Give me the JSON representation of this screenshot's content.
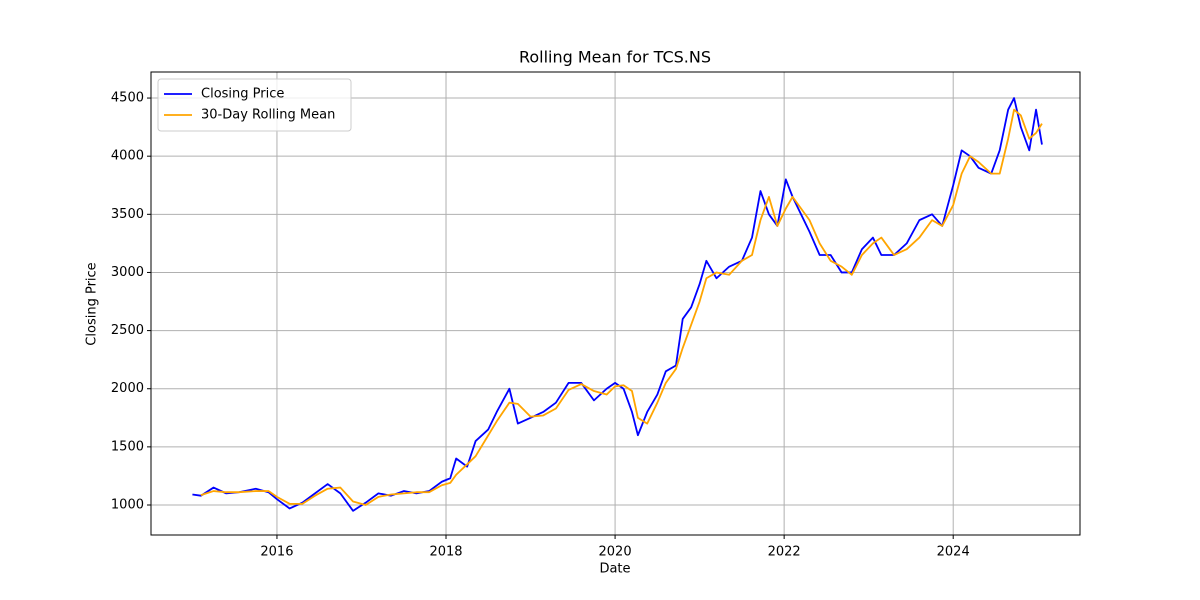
{
  "chart_data": {
    "type": "line",
    "title": "Rolling Mean for TCS.NS",
    "x_label": "Date",
    "y_label": "Closing Price",
    "x": [
      2015.0,
      2015.1,
      2015.25,
      2015.4,
      2015.55,
      2015.75,
      2015.9,
      2016.0,
      2016.15,
      2016.3,
      2016.45,
      2016.6,
      2016.75,
      2016.9,
      2017.05,
      2017.2,
      2017.35,
      2017.5,
      2017.65,
      2017.8,
      2017.95,
      2018.05,
      2018.12,
      2018.25,
      2018.35,
      2018.5,
      2018.6,
      2018.75,
      2018.85,
      2019.0,
      2019.15,
      2019.3,
      2019.45,
      2019.6,
      2019.75,
      2019.9,
      2020.0,
      2020.1,
      2020.2,
      2020.27,
      2020.38,
      2020.5,
      2020.6,
      2020.72,
      2020.8,
      2020.9,
      2021.0,
      2021.08,
      2021.2,
      2021.35,
      2021.5,
      2021.62,
      2021.72,
      2021.82,
      2021.92,
      2022.02,
      2022.1,
      2022.2,
      2022.3,
      2022.42,
      2022.55,
      2022.68,
      2022.8,
      2022.92,
      2023.05,
      2023.15,
      2023.3,
      2023.45,
      2023.6,
      2023.75,
      2023.87,
      2024.0,
      2024.1,
      2024.2,
      2024.3,
      2024.45,
      2024.55,
      2024.65,
      2024.72,
      2024.8,
      2024.9,
      2024.98,
      2025.05
    ],
    "series": [
      {
        "name": "Closing Price",
        "color": "#0000ff",
        "values": [
          1090,
          1080,
          1150,
          1100,
          1110,
          1140,
          1110,
          1050,
          970,
          1020,
          1100,
          1180,
          1100,
          950,
          1020,
          1100,
          1080,
          1120,
          1100,
          1120,
          1200,
          1230,
          1400,
          1330,
          1550,
          1650,
          1800,
          2000,
          1700,
          1750,
          1800,
          1880,
          2050,
          2050,
          1900,
          2000,
          2050,
          2000,
          1800,
          1600,
          1800,
          1950,
          2150,
          2200,
          2600,
          2700,
          2900,
          3100,
          2950,
          3050,
          3100,
          3300,
          3700,
          3500,
          3400,
          3800,
          3650,
          3500,
          3350,
          3150,
          3150,
          3000,
          3000,
          3200,
          3300,
          3150,
          3150,
          3250,
          3450,
          3500,
          3400,
          3750,
          4050,
          4000,
          3900,
          3850,
          4050,
          4400,
          4500,
          4250,
          4050,
          4400,
          4100
        ]
      },
      {
        "name": "30-Day Rolling Mean",
        "color": "#ffa500",
        "values": [
          null,
          1085,
          1120,
          1110,
          1110,
          1120,
          1120,
          1070,
          1010,
          1010,
          1080,
          1140,
          1150,
          1030,
          1000,
          1070,
          1090,
          1100,
          1110,
          1110,
          1170,
          1190,
          1260,
          1350,
          1420,
          1600,
          1720,
          1880,
          1870,
          1760,
          1770,
          1830,
          1990,
          2040,
          1980,
          1950,
          2020,
          2030,
          1980,
          1750,
          1700,
          1880,
          2050,
          2170,
          2350,
          2550,
          2750,
          2950,
          3000,
          2980,
          3100,
          3150,
          3450,
          3650,
          3400,
          3550,
          3650,
          3550,
          3450,
          3250,
          3100,
          3050,
          2980,
          3150,
          3250,
          3300,
          3150,
          3200,
          3300,
          3450,
          3400,
          3580,
          3850,
          4000,
          3950,
          3850,
          3850,
          4150,
          4400,
          4350,
          4150,
          4200,
          4280
        ]
      }
    ],
    "xlim": [
      2014.51,
      2025.5
    ],
    "xticks": [
      2016,
      2018,
      2020,
      2022,
      2024
    ],
    "ylim": [
      742,
      4724
    ],
    "yticks": [
      1000,
      1500,
      2000,
      2500,
      3000,
      3500,
      4000,
      4500
    ],
    "grid": true,
    "legend": "upper-left"
  }
}
